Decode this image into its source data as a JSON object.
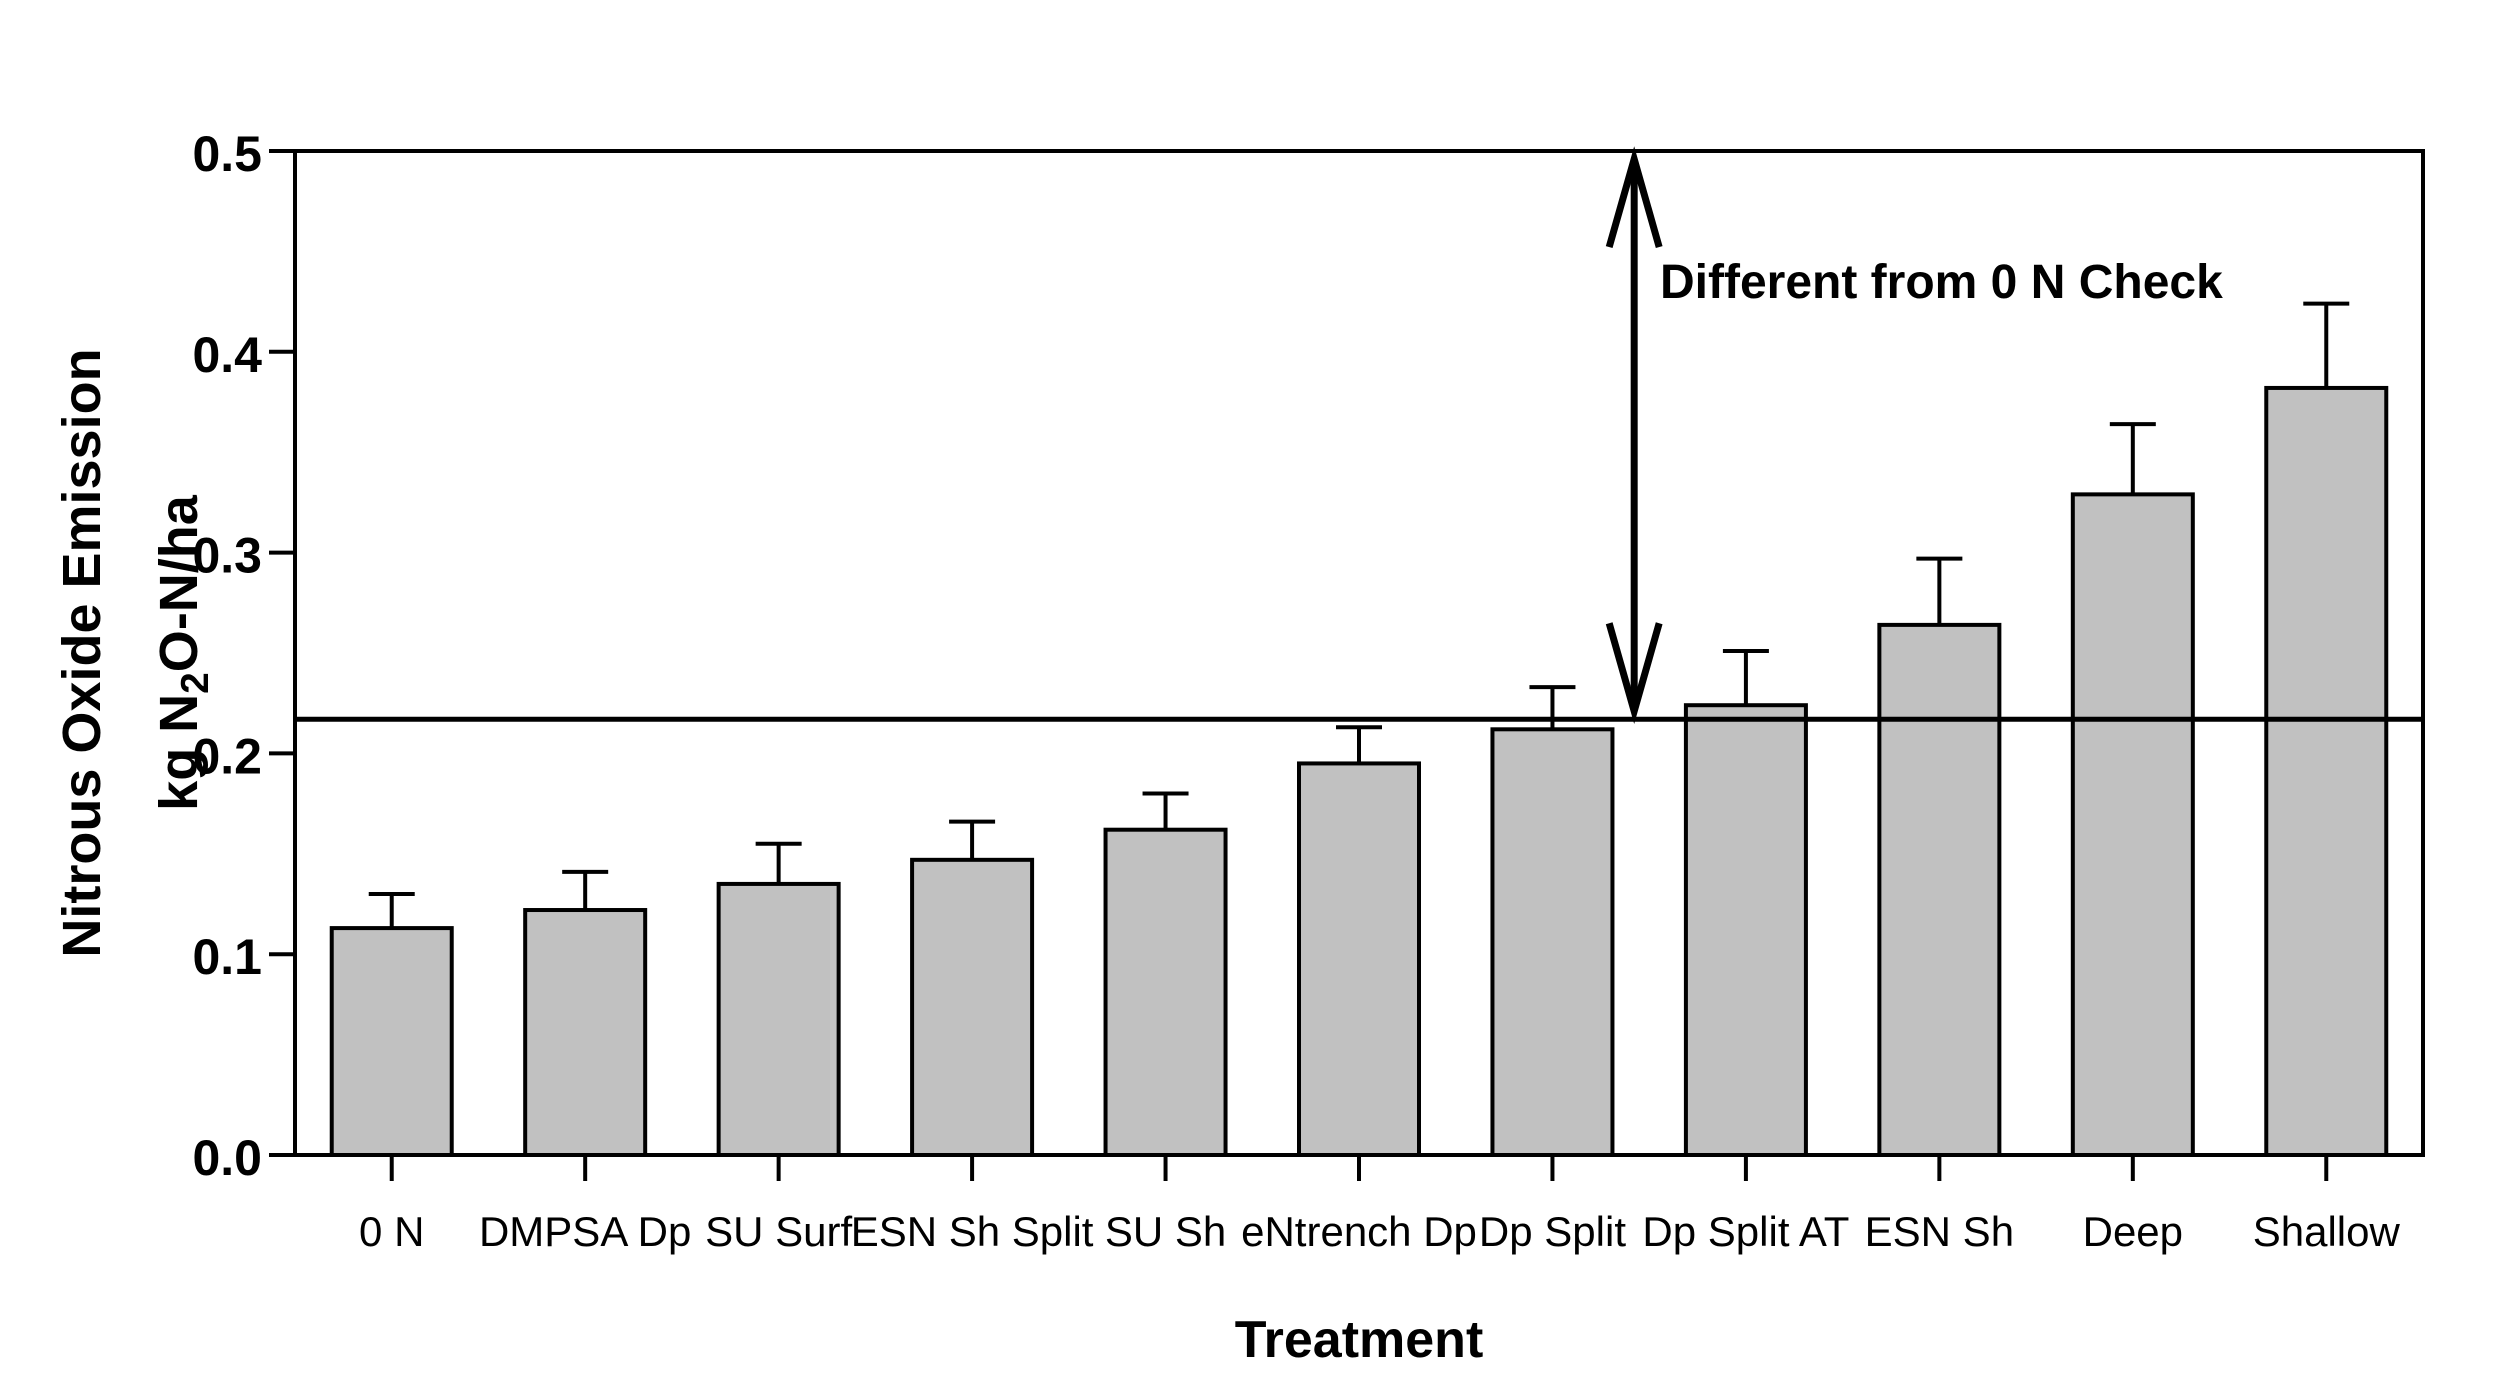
{
  "figure": {
    "background": "#ffffff"
  },
  "chart_data": {
    "type": "bar",
    "title": "",
    "xlabel": "Treatment",
    "ylabel_line1": "Nitrous Oxide Emission",
    "ylabel_line2_parts": {
      "pre": "kg N",
      "sub": "2",
      "post": "O-N/ha"
    },
    "categories": [
      "0 N",
      "DMPSA Dp",
      "SU Surf",
      "ESN Sh Split",
      "SU Sh",
      "eNtrench Dp",
      "Dp Split",
      "Dp Split AT",
      "ESN Sh",
      "Deep",
      "Shallow"
    ],
    "values": [
      0.113,
      0.122,
      0.135,
      0.147,
      0.162,
      0.195,
      0.212,
      0.224,
      0.264,
      0.329,
      0.382
    ],
    "upper_errors": [
      0.017,
      0.019,
      0.02,
      0.019,
      0.018,
      0.018,
      0.021,
      0.027,
      0.033,
      0.035,
      0.042
    ],
    "ylim": [
      0,
      0.5
    ],
    "ytick_labels": [
      "0.0",
      "0.1",
      "0.2",
      "0.3",
      "0.4",
      "0.5"
    ],
    "ytick_values": [
      0.0,
      0.1,
      0.2,
      0.3,
      0.4,
      0.5
    ],
    "grid": false,
    "legend": false,
    "bar_fill": "#c1c1c1",
    "bar_stroke": "#000000",
    "axis_color": "#000000",
    "reference_line": {
      "value": 0.217
    },
    "annotation": {
      "text": "Different from 0 N Check",
      "between_categories": [
        6,
        7
      ],
      "arrow_top_value": 0.496,
      "arrow_bottom_value": 0.221
    }
  }
}
